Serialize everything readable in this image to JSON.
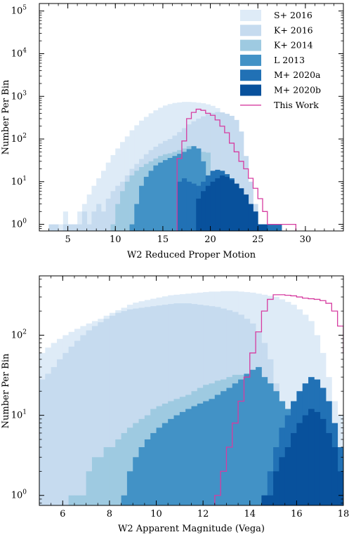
{
  "chart_data": [
    {
      "type": "bar",
      "style": "step histogram",
      "xlabel": "W2 Reduced Proper Motion",
      "ylabel": "Number Per Bin",
      "xlim": [
        2,
        34
      ],
      "ylim": [
        0.7,
        150000
      ],
      "yscale": "log",
      "x_ticks": [
        5,
        10,
        15,
        20,
        25,
        30
      ],
      "x_tick_labels": [
        "5",
        "10",
        "15",
        "20",
        "25",
        "30"
      ],
      "y_tick_exps": [
        0,
        1,
        2,
        3,
        4,
        5
      ],
      "legend_position": "top-right",
      "bin_width": 0.5,
      "series": [
        {
          "name": "S+ 2016",
          "color": "#deebf7",
          "kind": "filled",
          "x0": 4.0,
          "values": [
            1,
            2,
            1,
            1,
            2,
            3,
            5,
            8,
            12,
            18,
            28,
            42,
            60,
            85,
            115,
            160,
            210,
            270,
            330,
            400,
            470,
            540,
            610,
            660,
            700,
            720,
            740,
            740,
            730,
            710,
            690,
            650,
            600,
            530,
            420,
            300,
            180,
            90,
            40,
            15,
            6,
            2,
            1
          ]
        },
        {
          "name": "K+ 2016",
          "color": "#c6dbef",
          "kind": "filled",
          "x0": 3.0,
          "values": [
            1,
            1,
            0,
            1,
            1,
            1,
            1,
            2,
            1,
            2,
            3,
            2,
            4,
            6,
            8,
            10,
            14,
            20,
            26,
            34,
            44,
            55,
            66,
            78,
            90,
            100,
            120,
            145,
            180,
            220,
            260,
            300,
            340,
            380,
            410,
            430,
            420,
            390,
            350,
            280,
            150,
            40,
            10,
            3,
            1
          ]
        },
        {
          "name": "K+ 2014",
          "color": "#9ecae1",
          "kind": "filled",
          "x0": 9.5,
          "values": [
            1,
            3,
            6,
            10,
            14,
            18,
            22,
            26,
            30,
            35,
            40,
            44,
            46,
            50,
            55,
            60,
            68,
            62,
            55,
            50,
            48,
            10,
            3
          ]
        },
        {
          "name": "L 2013",
          "color": "#4292c6",
          "kind": "filled",
          "x0": 11.5,
          "values": [
            1,
            3,
            8,
            13,
            18,
            24,
            28,
            32,
            36,
            40,
            45,
            50,
            58,
            68,
            60,
            30
          ]
        },
        {
          "name": "M+ 2020a",
          "color": "#2171b5",
          "kind": "filled",
          "x0": 16.5,
          "values": [
            10,
            12,
            10,
            9,
            8,
            10,
            14,
            18,
            19,
            18,
            15,
            12,
            8,
            5,
            3,
            2,
            1,
            1,
            1,
            1,
            1,
            1
          ]
        },
        {
          "name": "M+ 2020b",
          "color": "#08519c",
          "kind": "filled",
          "x0": 18.5,
          "values": [
            4,
            6,
            8,
            10,
            12,
            14,
            13,
            11,
            9,
            7,
            5,
            3,
            2,
            1,
            1
          ]
        },
        {
          "name": "This Work",
          "color": "#d63ca0",
          "kind": "step-line",
          "x0": 16.5,
          "values": [
            35,
            90,
            300,
            420,
            500,
            470,
            400,
            360,
            280,
            200,
            140,
            80,
            50,
            30,
            20,
            12,
            7,
            4,
            2,
            1,
            1,
            1,
            1,
            1,
            1
          ]
        }
      ]
    },
    {
      "type": "bar",
      "style": "step histogram",
      "xlabel": "W2 Apparent Magnitude (Vega)",
      "ylabel": "Number Per Bin",
      "xlim": [
        5,
        18
      ],
      "ylim": [
        0.75,
        550
      ],
      "yscale": "log",
      "x_ticks": [
        6,
        8,
        10,
        12,
        14,
        16,
        18
      ],
      "x_tick_labels": [
        "6",
        "8",
        "10",
        "12",
        "14",
        "16",
        "18"
      ],
      "y_tick_exps": [
        0,
        1,
        2
      ],
      "bin_width": 0.25,
      "series": [
        {
          "name": "S+ 2016",
          "color": "#deebf7",
          "kind": "filled",
          "x0": 5.0,
          "values": [
            60,
            70,
            80,
            90,
            100,
            110,
            120,
            130,
            140,
            150,
            160,
            175,
            190,
            205,
            220,
            240,
            255,
            265,
            275,
            285,
            295,
            305,
            315,
            320,
            325,
            330,
            335,
            340,
            345,
            350,
            350,
            355,
            355,
            355,
            350,
            345,
            340,
            330,
            320,
            310,
            300,
            280,
            260,
            240,
            210,
            180,
            150,
            100,
            60,
            30,
            15,
            10,
            8,
            5,
            3,
            2
          ]
        },
        {
          "name": "K+ 2016",
          "color": "#c6dbef",
          "kind": "filled",
          "x0": 5.0,
          "values": [
            28,
            33,
            40,
            50,
            60,
            72,
            85,
            100,
            115,
            130,
            145,
            160,
            175,
            190,
            200,
            210,
            215,
            220,
            225,
            230,
            235,
            240,
            245,
            250,
            250,
            250,
            245,
            240,
            235,
            230,
            225,
            215,
            205,
            195,
            180,
            160,
            140,
            110,
            80,
            50,
            25,
            12,
            6,
            3,
            2,
            1,
            1
          ]
        },
        {
          "name": "K+ 2014",
          "color": "#9ecae1",
          "kind": "filled",
          "x0": 6.25,
          "values": [
            1,
            1,
            1,
            2,
            3,
            3,
            4,
            4,
            5,
            6,
            7,
            8,
            9,
            10,
            12,
            13,
            14,
            15,
            16,
            17,
            18,
            20,
            22,
            24,
            25,
            27,
            28,
            30,
            32,
            32,
            30,
            25,
            20,
            15,
            10,
            8,
            6,
            4,
            3,
            2,
            1,
            1,
            1
          ]
        },
        {
          "name": "L 2013",
          "color": "#4292c6",
          "kind": "filled",
          "x0": 8.5,
          "values": [
            1,
            2,
            3,
            4,
            5,
            6,
            7,
            8,
            9,
            10,
            11,
            12,
            13,
            14,
            15,
            16,
            18,
            20,
            22,
            25,
            28,
            33,
            37,
            40,
            30,
            25,
            20,
            15,
            12,
            10,
            9,
            8,
            7,
            6,
            5,
            4,
            3,
            2,
            2,
            1
          ]
        },
        {
          "name": "M+ 2020a",
          "color": "#2171b5",
          "kind": "filled",
          "x0": 14.5,
          "values": [
            1,
            2,
            4,
            7,
            10,
            15,
            20,
            25,
            30,
            28,
            22,
            15,
            8,
            4,
            3,
            2,
            1
          ]
        },
        {
          "name": "M+ 2020b",
          "color": "#08519c",
          "kind": "filled",
          "x0": 14.5,
          "values": [
            1,
            1,
            2,
            3,
            4,
            6,
            8,
            10,
            12,
            11,
            9,
            6,
            4,
            2,
            1,
            1
          ]
        },
        {
          "name": "This Work",
          "color": "#d63ca0",
          "kind": "step-line",
          "x0": 12.5,
          "values": [
            1,
            2,
            4,
            8,
            15,
            30,
            60,
            110,
            200,
            280,
            320,
            320,
            315,
            310,
            300,
            290,
            285,
            280,
            270,
            250,
            200,
            130,
            60,
            20,
            5,
            2,
            1
          ]
        }
      ]
    }
  ]
}
